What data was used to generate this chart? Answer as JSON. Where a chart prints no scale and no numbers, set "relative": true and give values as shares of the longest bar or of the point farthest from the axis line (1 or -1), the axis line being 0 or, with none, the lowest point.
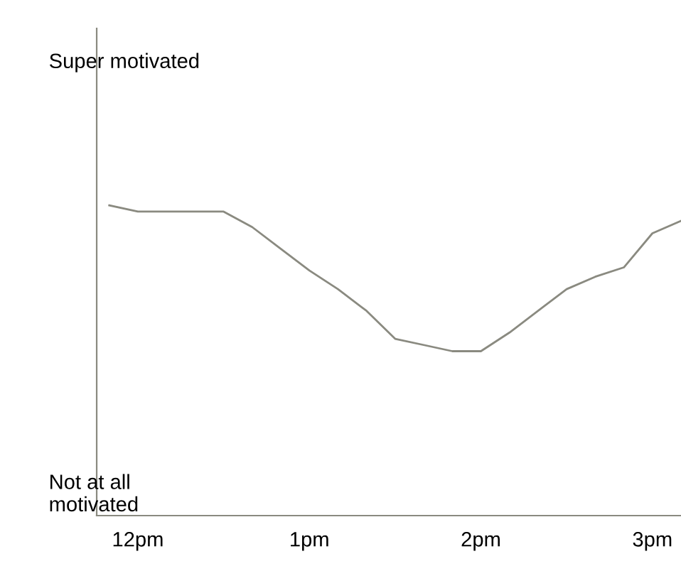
{
  "chart_data": {
    "type": "line",
    "relative": true,
    "categories": [
      null,
      "12pm",
      null,
      null,
      null,
      null,
      null,
      "1pm",
      null,
      null,
      null,
      null,
      null,
      "2pm",
      null,
      null,
      null,
      null,
      null,
      "3pm",
      null
    ],
    "annotations": [
      "Super motivated",
      "Not at all\nmotivated"
    ],
    "grid": false,
    "legend": false,
    "marker": "none",
    "line_style": "solid",
    "series": [
      {
        "color": "#8a8a80",
        "values": [
          1.0,
          0.98,
          0.98,
          0.98,
          0.98,
          0.93,
          0.86,
          0.79,
          0.73,
          0.66,
          0.57,
          0.55,
          0.53,
          0.53,
          0.59,
          0.66,
          0.73,
          0.77,
          0.8,
          0.91,
          0.95
        ]
      }
    ]
  }
}
